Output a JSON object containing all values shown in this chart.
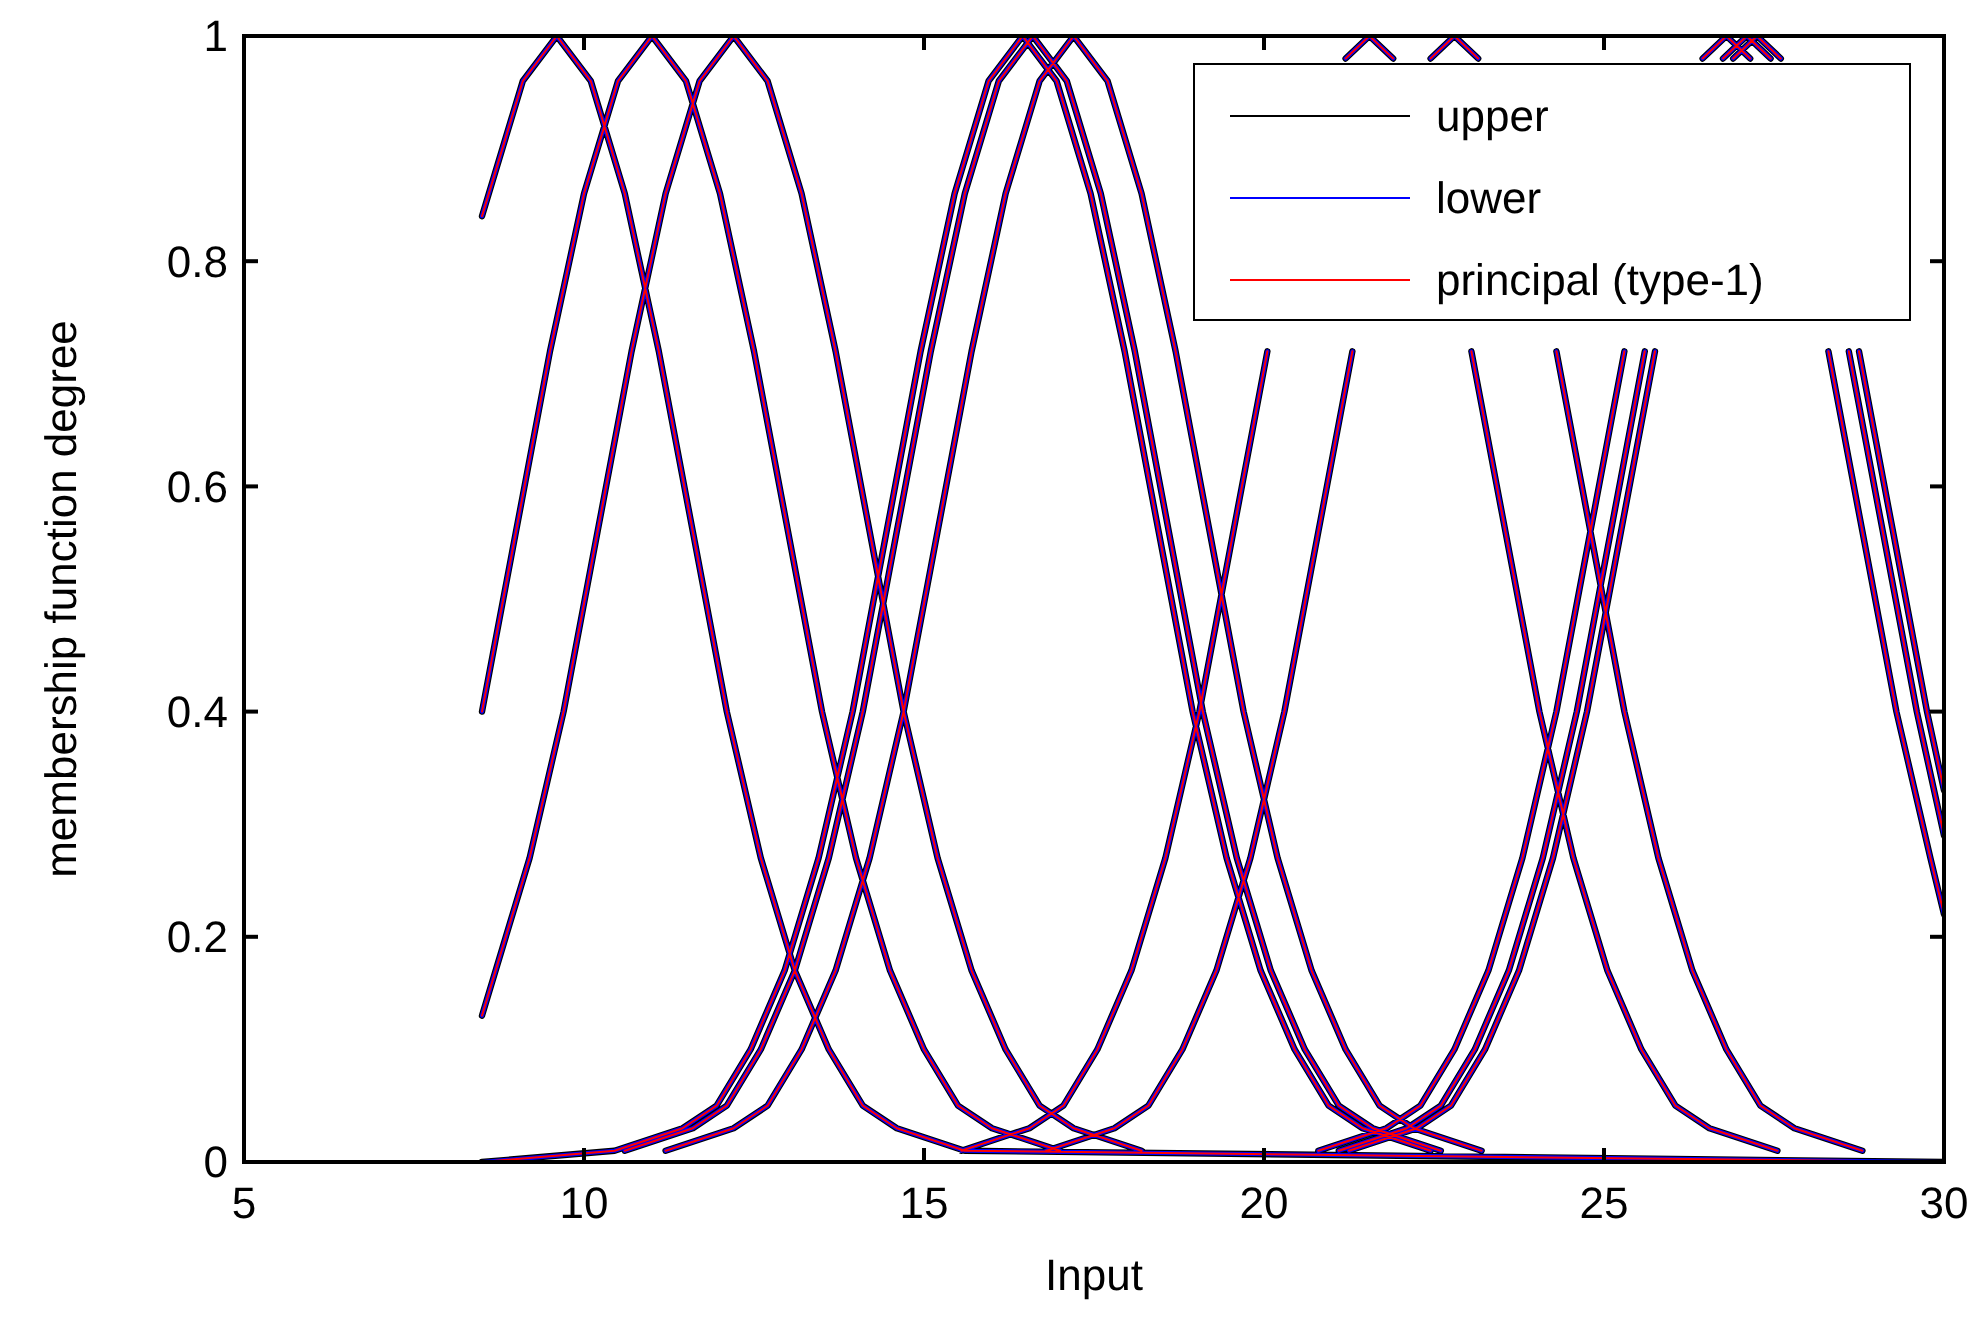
{
  "chart_data": {
    "type": "line",
    "xlabel": "Input",
    "ylabel": "membership function degree",
    "xlim": [
      5,
      30
    ],
    "ylim": [
      0,
      1
    ],
    "xticks": [
      5,
      10,
      15,
      20,
      25,
      30
    ],
    "yticks": [
      0,
      0.2,
      0.4,
      0.6,
      0.8,
      1
    ],
    "legend": "top right",
    "series": [
      {
        "name": "upper",
        "color": "#000000",
        "x": [
          8.5,
          9.1,
          9.6,
          10.1,
          10.6,
          11.1,
          11.6,
          12.1,
          12.6,
          13.1,
          13.6,
          14.1,
          14.6,
          15.6,
          30,
          null,
          8.5,
          9,
          9.5,
          10,
          10.5,
          11,
          11.5,
          12,
          12.5,
          13,
          13.5,
          14,
          14.5,
          15,
          15.5,
          16,
          17,
          null,
          8.5,
          9.2,
          9.7,
          10.2,
          10.7,
          11.2,
          11.7,
          12.2,
          12.7,
          13.2,
          13.7,
          14.2,
          14.7,
          15.2,
          15.7,
          16.2,
          16.7,
          17.2,
          18.2,
          null,
          8.5,
          10.45,
          11.45,
          11.95,
          12.45,
          12.95,
          13.45,
          13.95,
          14.45,
          14.95,
          15.45,
          15.95,
          16.45,
          16.95,
          17.45,
          17.95,
          18.45,
          18.95,
          19.45,
          19.95,
          20.45,
          20.95,
          21.45,
          22.45,
          null,
          10.6,
          11.6,
          12.1,
          12.6,
          13.1,
          13.6,
          14.1,
          14.6,
          15.1,
          15.6,
          16.1,
          16.6,
          17.1,
          17.6,
          18.1,
          18.6,
          19.1,
          19.6,
          20.1,
          20.6,
          21.1,
          21.6,
          22.6,
          null,
          11.2,
          12.2,
          12.7,
          13.2,
          13.7,
          14.2,
          14.7,
          15.2,
          15.7,
          16.2,
          16.7,
          17.2,
          17.7,
          18.2,
          18.7,
          19.2,
          19.7,
          20.2,
          20.7,
          21.2,
          21.7,
          22.2,
          23.2,
          null,
          15.55,
          16.55,
          17.05,
          17.55,
          18.05,
          18.55,
          19.05,
          19.55,
          20.05,
          null,
          21.2,
          21.55,
          21.9,
          null,
          23.05,
          23.55,
          24.05,
          24.55,
          25.05,
          25.55,
          26.05,
          26.55,
          27.55,
          null,
          16.8,
          17.8,
          18.3,
          18.8,
          19.3,
          19.8,
          20.3,
          20.8,
          21.3,
          null,
          22.45,
          22.8,
          23.15,
          null,
          24.3,
          24.8,
          25.3,
          25.8,
          26.3,
          26.8,
          27.3,
          27.8,
          28.8,
          null,
          20.8,
          21.8,
          22.3,
          22.8,
          23.3,
          23.8,
          24.3,
          24.8,
          25.3,
          null,
          26.45,
          26.8,
          27.15,
          null,
          28.3,
          28.8,
          29.3,
          29.8,
          30,
          null,
          21.1,
          22.1,
          22.6,
          23.1,
          23.6,
          24.1,
          24.6,
          25.1,
          25.6,
          null,
          26.75,
          27.1,
          27.45,
          null,
          28.6,
          29.1,
          29.6,
          30,
          null,
          21.25,
          22.25,
          22.75,
          23.25,
          23.75,
          24.25,
          24.75,
          25.25,
          25.75,
          null,
          26.9,
          27.25,
          27.6,
          null,
          28.75,
          29.25,
          29.75,
          30
        ],
        "values": [
          0.84,
          0.96,
          1,
          0.96,
          0.86,
          0.72,
          0.56,
          0.4,
          0.27,
          0.17,
          0.1,
          0.05,
          0.03,
          0.01,
          0,
          null,
          0.4,
          0.56,
          0.72,
          0.86,
          0.96,
          1,
          0.96,
          0.86,
          0.72,
          0.56,
          0.4,
          0.27,
          0.17,
          0.1,
          0.05,
          0.03,
          0.01,
          null,
          0.13,
          0.27,
          0.4,
          0.56,
          0.72,
          0.86,
          0.96,
          1,
          0.96,
          0.86,
          0.72,
          0.56,
          0.4,
          0.27,
          0.17,
          0.1,
          0.05,
          0.03,
          0.01,
          null,
          0,
          0.01,
          0.03,
          0.05,
          0.1,
          0.17,
          0.27,
          0.4,
          0.56,
          0.72,
          0.86,
          0.96,
          1,
          0.96,
          0.86,
          0.72,
          0.56,
          0.4,
          0.27,
          0.17,
          0.1,
          0.05,
          0.03,
          0.01,
          null,
          0.01,
          0.03,
          0.05,
          0.1,
          0.17,
          0.27,
          0.4,
          0.56,
          0.72,
          0.86,
          0.96,
          1,
          0.96,
          0.86,
          0.72,
          0.56,
          0.4,
          0.27,
          0.17,
          0.1,
          0.05,
          0.03,
          0.01,
          null,
          0.01,
          0.03,
          0.05,
          0.1,
          0.17,
          0.27,
          0.4,
          0.56,
          0.72,
          0.86,
          0.96,
          1,
          0.96,
          0.86,
          0.72,
          0.56,
          0.4,
          0.27,
          0.17,
          0.1,
          0.05,
          0.03,
          0.01,
          null,
          0.01,
          0.03,
          0.05,
          0.1,
          0.17,
          0.27,
          0.4,
          0.56,
          0.72,
          null,
          0.98,
          1,
          0.98,
          null,
          0.72,
          0.56,
          0.4,
          0.27,
          0.17,
          0.1,
          0.05,
          0.03,
          0.01,
          null,
          0.01,
          0.03,
          0.05,
          0.1,
          0.17,
          0.27,
          0.4,
          0.56,
          0.72,
          null,
          0.98,
          1,
          0.98,
          null,
          0.72,
          0.56,
          0.4,
          0.27,
          0.17,
          0.1,
          0.05,
          0.03,
          0.01,
          null,
          0.01,
          0.03,
          0.05,
          0.1,
          0.17,
          0.27,
          0.4,
          0.56,
          0.72,
          null,
          0.98,
          1,
          0.98,
          null,
          0.72,
          0.56,
          0.4,
          0.27,
          0.22,
          null,
          0.01,
          0.03,
          0.05,
          0.1,
          0.17,
          0.27,
          0.4,
          0.56,
          0.72,
          null,
          0.98,
          1,
          0.98,
          null,
          0.72,
          0.56,
          0.4,
          0.29,
          null,
          0.01,
          0.03,
          0.05,
          0.1,
          0.17,
          0.27,
          0.4,
          0.56,
          0.72,
          null,
          0.98,
          1,
          0.98,
          null,
          0.72,
          0.56,
          0.4,
          0.33
        ]
      },
      {
        "name": "lower",
        "color": "#0000ff",
        "x": [
          8.5,
          9.1,
          9.6,
          10.1,
          10.6,
          11.1,
          11.6,
          12.1,
          12.6,
          13.1,
          13.6,
          14.1,
          14.6,
          15.6,
          30,
          null,
          8.5,
          9,
          9.5,
          10,
          10.5,
          11,
          11.5,
          12,
          12.5,
          13,
          13.5,
          14,
          14.5,
          15,
          15.5,
          16,
          17,
          null,
          8.5,
          9.2,
          9.7,
          10.2,
          10.7,
          11.2,
          11.7,
          12.2,
          12.7,
          13.2,
          13.7,
          14.2,
          14.7,
          15.2,
          15.7,
          16.2,
          16.7,
          17.2,
          18.2,
          null,
          8.5,
          10.45,
          11.45,
          11.95,
          12.45,
          12.95,
          13.45,
          13.95,
          14.45,
          14.95,
          15.45,
          15.95,
          16.45,
          16.95,
          17.45,
          17.95,
          18.45,
          18.95,
          19.45,
          19.95,
          20.45,
          20.95,
          21.45,
          22.45,
          null,
          10.6,
          11.6,
          12.1,
          12.6,
          13.1,
          13.6,
          14.1,
          14.6,
          15.1,
          15.6,
          16.1,
          16.6,
          17.1,
          17.6,
          18.1,
          18.6,
          19.1,
          19.6,
          20.1,
          20.6,
          21.1,
          21.6,
          22.6,
          null,
          11.2,
          12.2,
          12.7,
          13.2,
          13.7,
          14.2,
          14.7,
          15.2,
          15.7,
          16.2,
          16.7,
          17.2,
          17.7,
          18.2,
          18.7,
          19.2,
          19.7,
          20.2,
          20.7,
          21.2,
          21.7,
          22.2,
          23.2,
          null,
          15.55,
          16.55,
          17.05,
          17.55,
          18.05,
          18.55,
          19.05,
          19.55,
          20.05,
          null,
          21.2,
          21.55,
          21.9,
          null,
          23.05,
          23.55,
          24.05,
          24.55,
          25.05,
          25.55,
          26.05,
          26.55,
          27.55,
          null,
          16.8,
          17.8,
          18.3,
          18.8,
          19.3,
          19.8,
          20.3,
          20.8,
          21.3,
          null,
          22.45,
          22.8,
          23.15,
          null,
          24.3,
          24.8,
          25.3,
          25.8,
          26.3,
          26.8,
          27.3,
          27.8,
          28.8,
          null,
          20.8,
          21.8,
          22.3,
          22.8,
          23.3,
          23.8,
          24.3,
          24.8,
          25.3,
          null,
          26.45,
          26.8,
          27.15,
          null,
          28.3,
          28.8,
          29.3,
          29.8,
          30,
          null,
          21.1,
          22.1,
          22.6,
          23.1,
          23.6,
          24.1,
          24.6,
          25.1,
          25.6,
          null,
          26.75,
          27.1,
          27.45,
          null,
          28.6,
          29.1,
          29.6,
          30,
          null,
          21.25,
          22.25,
          22.75,
          23.25,
          23.75,
          24.25,
          24.75,
          25.25,
          25.75,
          null,
          26.9,
          27.25,
          27.6,
          null,
          28.75,
          29.25,
          29.75,
          30
        ],
        "values": [
          0.84,
          0.96,
          1,
          0.96,
          0.86,
          0.72,
          0.56,
          0.4,
          0.27,
          0.17,
          0.1,
          0.05,
          0.03,
          0.01,
          0,
          null,
          0.4,
          0.56,
          0.72,
          0.86,
          0.96,
          1,
          0.96,
          0.86,
          0.72,
          0.56,
          0.4,
          0.27,
          0.17,
          0.1,
          0.05,
          0.03,
          0.01,
          null,
          0.13,
          0.27,
          0.4,
          0.56,
          0.72,
          0.86,
          0.96,
          1,
          0.96,
          0.86,
          0.72,
          0.56,
          0.4,
          0.27,
          0.17,
          0.1,
          0.05,
          0.03,
          0.01,
          null,
          0,
          0.01,
          0.03,
          0.05,
          0.1,
          0.17,
          0.27,
          0.4,
          0.56,
          0.72,
          0.86,
          0.96,
          1,
          0.96,
          0.86,
          0.72,
          0.56,
          0.4,
          0.27,
          0.17,
          0.1,
          0.05,
          0.03,
          0.01,
          null,
          0.01,
          0.03,
          0.05,
          0.1,
          0.17,
          0.27,
          0.4,
          0.56,
          0.72,
          0.86,
          0.96,
          1,
          0.96,
          0.86,
          0.72,
          0.56,
          0.4,
          0.27,
          0.17,
          0.1,
          0.05,
          0.03,
          0.01,
          null,
          0.01,
          0.03,
          0.05,
          0.1,
          0.17,
          0.27,
          0.4,
          0.56,
          0.72,
          0.86,
          0.96,
          1,
          0.96,
          0.86,
          0.72,
          0.56,
          0.4,
          0.27,
          0.17,
          0.1,
          0.05,
          0.03,
          0.01,
          null,
          0.01,
          0.03,
          0.05,
          0.1,
          0.17,
          0.27,
          0.4,
          0.56,
          0.72,
          null,
          0.98,
          1,
          0.98,
          null,
          0.72,
          0.56,
          0.4,
          0.27,
          0.17,
          0.1,
          0.05,
          0.03,
          0.01,
          null,
          0.01,
          0.03,
          0.05,
          0.1,
          0.17,
          0.27,
          0.4,
          0.56,
          0.72,
          null,
          0.98,
          1,
          0.98,
          null,
          0.72,
          0.56,
          0.4,
          0.27,
          0.17,
          0.1,
          0.05,
          0.03,
          0.01,
          null,
          0.01,
          0.03,
          0.05,
          0.1,
          0.17,
          0.27,
          0.4,
          0.56,
          0.72,
          null,
          0.98,
          1,
          0.98,
          null,
          0.72,
          0.56,
          0.4,
          0.27,
          0.22,
          null,
          0.01,
          0.03,
          0.05,
          0.1,
          0.17,
          0.27,
          0.4,
          0.56,
          0.72,
          null,
          0.98,
          1,
          0.98,
          null,
          0.72,
          0.56,
          0.4,
          0.29,
          null,
          0.01,
          0.03,
          0.05,
          0.1,
          0.17,
          0.27,
          0.4,
          0.56,
          0.72,
          null,
          0.98,
          1,
          0.98,
          null,
          0.72,
          0.56,
          0.4,
          0.33
        ]
      },
      {
        "name": "principal (type-1)",
        "color": "#ff0000",
        "x": [
          8.5,
          9.1,
          9.6,
          10.1,
          10.6,
          11.1,
          11.6,
          12.1,
          12.6,
          13.1,
          13.6,
          14.1,
          14.6,
          15.6,
          30,
          null,
          8.5,
          9,
          9.5,
          10,
          10.5,
          11,
          11.5,
          12,
          12.5,
          13,
          13.5,
          14,
          14.5,
          15,
          15.5,
          16,
          17,
          null,
          8.5,
          9.2,
          9.7,
          10.2,
          10.7,
          11.2,
          11.7,
          12.2,
          12.7,
          13.2,
          13.7,
          14.2,
          14.7,
          15.2,
          15.7,
          16.2,
          16.7,
          17.2,
          18.2,
          null,
          8.5,
          10.45,
          11.45,
          11.95,
          12.45,
          12.95,
          13.45,
          13.95,
          14.45,
          14.95,
          15.45,
          15.95,
          16.45,
          16.95,
          17.45,
          17.95,
          18.45,
          18.95,
          19.45,
          19.95,
          20.45,
          20.95,
          21.45,
          22.45,
          null,
          10.6,
          11.6,
          12.1,
          12.6,
          13.1,
          13.6,
          14.1,
          14.6,
          15.1,
          15.6,
          16.1,
          16.6,
          17.1,
          17.6,
          18.1,
          18.6,
          19.1,
          19.6,
          20.1,
          20.6,
          21.1,
          21.6,
          22.6,
          null,
          11.2,
          12.2,
          12.7,
          13.2,
          13.7,
          14.2,
          14.7,
          15.2,
          15.7,
          16.2,
          16.7,
          17.2,
          17.7,
          18.2,
          18.7,
          19.2,
          19.7,
          20.2,
          20.7,
          21.2,
          21.7,
          22.2,
          23.2,
          null,
          15.55,
          16.55,
          17.05,
          17.55,
          18.05,
          18.55,
          19.05,
          19.55,
          20.05,
          null,
          21.2,
          21.55,
          21.9,
          null,
          23.05,
          23.55,
          24.05,
          24.55,
          25.05,
          25.55,
          26.05,
          26.55,
          27.55,
          null,
          16.8,
          17.8,
          18.3,
          18.8,
          19.3,
          19.8,
          20.3,
          20.8,
          21.3,
          null,
          22.45,
          22.8,
          23.15,
          null,
          24.3,
          24.8,
          25.3,
          25.8,
          26.3,
          26.8,
          27.3,
          27.8,
          28.8,
          null,
          20.8,
          21.8,
          22.3,
          22.8,
          23.3,
          23.8,
          24.3,
          24.8,
          25.3,
          null,
          26.45,
          26.8,
          27.15,
          null,
          28.3,
          28.8,
          29.3,
          29.8,
          30,
          null,
          21.1,
          22.1,
          22.6,
          23.1,
          23.6,
          24.1,
          24.6,
          25.1,
          25.6,
          null,
          26.75,
          27.1,
          27.45,
          null,
          28.6,
          29.1,
          29.6,
          30,
          null,
          21.25,
          22.25,
          22.75,
          23.25,
          23.75,
          24.25,
          24.75,
          25.25,
          25.75,
          null,
          26.9,
          27.25,
          27.6,
          null,
          28.75,
          29.25,
          29.75,
          30
        ],
        "values": [
          0.84,
          0.96,
          1,
          0.96,
          0.86,
          0.72,
          0.56,
          0.4,
          0.27,
          0.17,
          0.1,
          0.05,
          0.03,
          0.01,
          0,
          null,
          0.4,
          0.56,
          0.72,
          0.86,
          0.96,
          1,
          0.96,
          0.86,
          0.72,
          0.56,
          0.4,
          0.27,
          0.17,
          0.1,
          0.05,
          0.03,
          0.01,
          null,
          0.13,
          0.27,
          0.4,
          0.56,
          0.72,
          0.86,
          0.96,
          1,
          0.96,
          0.86,
          0.72,
          0.56,
          0.4,
          0.27,
          0.17,
          0.1,
          0.05,
          0.03,
          0.01,
          null,
          0,
          0.01,
          0.03,
          0.05,
          0.1,
          0.17,
          0.27,
          0.4,
          0.56,
          0.72,
          0.86,
          0.96,
          1,
          0.96,
          0.86,
          0.72,
          0.56,
          0.4,
          0.27,
          0.17,
          0.1,
          0.05,
          0.03,
          0.01,
          null,
          0.01,
          0.03,
          0.05,
          0.1,
          0.17,
          0.27,
          0.4,
          0.56,
          0.72,
          0.86,
          0.96,
          1,
          0.96,
          0.86,
          0.72,
          0.56,
          0.4,
          0.27,
          0.17,
          0.1,
          0.05,
          0.03,
          0.01,
          null,
          0.01,
          0.03,
          0.05,
          0.1,
          0.17,
          0.27,
          0.4,
          0.56,
          0.72,
          0.86,
          0.96,
          1,
          0.96,
          0.86,
          0.72,
          0.56,
          0.4,
          0.27,
          0.17,
          0.1,
          0.05,
          0.03,
          0.01,
          null,
          0.01,
          0.03,
          0.05,
          0.1,
          0.17,
          0.27,
          0.4,
          0.56,
          0.72,
          null,
          0.98,
          1,
          0.98,
          null,
          0.72,
          0.56,
          0.4,
          0.27,
          0.17,
          0.1,
          0.05,
          0.03,
          0.01,
          null,
          0.01,
          0.03,
          0.05,
          0.1,
          0.17,
          0.27,
          0.4,
          0.56,
          0.72,
          null,
          0.98,
          1,
          0.98,
          null,
          0.72,
          0.56,
          0.4,
          0.27,
          0.17,
          0.1,
          0.05,
          0.03,
          0.01,
          null,
          0.01,
          0.03,
          0.05,
          0.1,
          0.17,
          0.27,
          0.4,
          0.56,
          0.72,
          null,
          0.98,
          1,
          0.98,
          null,
          0.72,
          0.56,
          0.4,
          0.27,
          0.22,
          null,
          0.01,
          0.03,
          0.05,
          0.1,
          0.17,
          0.27,
          0.4,
          0.56,
          0.72,
          null,
          0.98,
          1,
          0.98,
          null,
          0.72,
          0.56,
          0.4,
          0.29,
          null,
          0.01,
          0.03,
          0.05,
          0.1,
          0.17,
          0.27,
          0.4,
          0.56,
          0.72,
          null,
          0.98,
          1,
          0.98,
          null,
          0.72,
          0.56,
          0.4,
          0.33
        ]
      }
    ]
  }
}
